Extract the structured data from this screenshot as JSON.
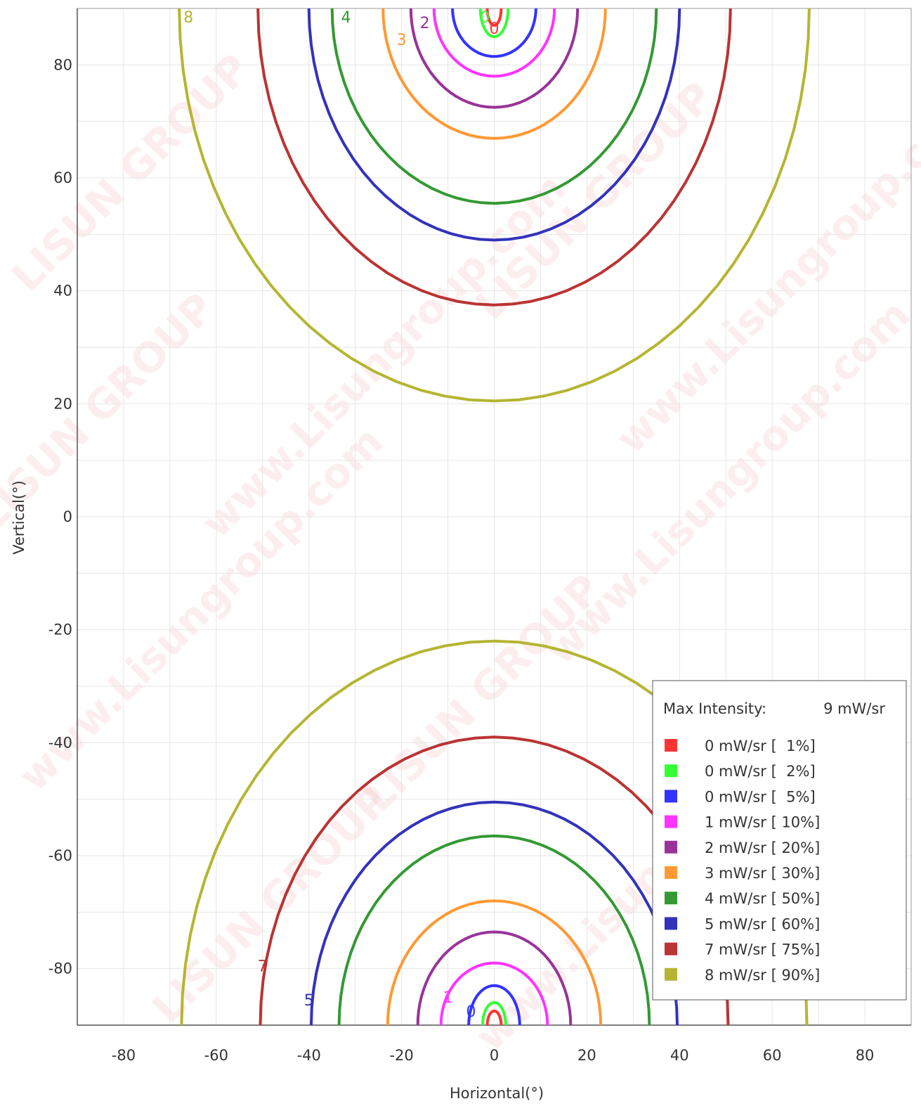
{
  "chart_data": {
    "type": "contour",
    "xlabel": "Horizontal(°)",
    "ylabel": "Vertical(°)",
    "xlim": [
      -90,
      90
    ],
    "ylim": [
      -90,
      90
    ],
    "xticks": [
      -80,
      -60,
      -40,
      -20,
      0,
      20,
      40,
      60,
      80
    ],
    "yticks": [
      80,
      60,
      40,
      20,
      0,
      -20,
      -40,
      -60,
      -80
    ],
    "grid": true,
    "legend": {
      "placement": "bottom-right",
      "header_label": "Max Intensity:",
      "header_value": "9 mW/sr",
      "entries": [
        {
          "label": "0 mW/sr [  1%]",
          "color": "#ff3333"
        },
        {
          "label": "0 mW/sr [  2%]",
          "color": "#33ff33"
        },
        {
          "label": "0 mW/sr [  5%]",
          "color": "#3333ff"
        },
        {
          "label": "1 mW/sr [ 10%]",
          "color": "#ff33ff"
        },
        {
          "label": "2 mW/sr [ 20%]",
          "color": "#993399"
        },
        {
          "label": "3 mW/sr [ 30%]",
          "color": "#ff9933"
        },
        {
          "label": "4 mW/sr [ 50%]",
          "color": "#339933"
        },
        {
          "label": "5 mW/sr [ 60%]",
          "color": "#3333bb"
        },
        {
          "label": "7 mW/sr [ 75%]",
          "color": "#bb3333"
        },
        {
          "label": "8 mW/sr [ 90%]",
          "color": "#b5b533"
        }
      ]
    },
    "contours": [
      {
        "color": "#ff3333",
        "top": {
          "a": 1.5,
          "v0": 87
        },
        "bottom": {
          "a": 1.5,
          "v0": -87.5
        }
      },
      {
        "color": "#33ff33",
        "top": {
          "a": 3,
          "v0": 85
        },
        "bottom": {
          "a": 2.5,
          "v0": -86
        }
      },
      {
        "color": "#3333ff",
        "top": {
          "a": 9,
          "v0": 81.5
        },
        "bottom": {
          "a": 5.5,
          "v0": -83
        }
      },
      {
        "color": "#ff33ff",
        "top": {
          "a": 13,
          "v0": 78
        },
        "bottom": {
          "a": 11.5,
          "v0": -79
        }
      },
      {
        "color": "#993399",
        "top": {
          "a": 18,
          "v0": 72.5
        },
        "bottom": {
          "a": 16.5,
          "v0": -73.5
        }
      },
      {
        "color": "#ff9933",
        "top": {
          "a": 24,
          "v0": 67
        },
        "bottom": {
          "a": 23,
          "v0": -68
        }
      },
      {
        "color": "#339933",
        "top": {
          "a": 35,
          "v0": 55.5
        },
        "bottom": {
          "a": 33.5,
          "v0": -56.5
        }
      },
      {
        "color": "#3333bb",
        "top": {
          "a": 40,
          "v0": 49
        },
        "bottom": {
          "a": 39.5,
          "v0": -50.5
        }
      },
      {
        "color": "#bb3333",
        "top": {
          "a": 51,
          "v0": 37.5
        },
        "bottom": {
          "a": 50.5,
          "v0": -39
        }
      },
      {
        "color": "#b5b533",
        "top": {
          "a": 68,
          "v0": 20.5
        },
        "bottom": {
          "a": 67.5,
          "v0": -22
        }
      }
    ],
    "contour_labels": [
      {
        "text": "8",
        "color": "#b5b533",
        "x": -66,
        "y": 88.5
      },
      {
        "text": "4",
        "color": "#339933",
        "x": -32,
        "y": 88.5
      },
      {
        "text": "2",
        "color": "#993399",
        "x": -15,
        "y": 87.5
      },
      {
        "text": "3",
        "color": "#ff9933",
        "x": -20,
        "y": 84.5
      },
      {
        "text": "0",
        "color": "#33ff33",
        "x": -2,
        "y": 88.5
      },
      {
        "text": "0",
        "color": "#ff3333",
        "x": 0,
        "y": 86.5
      },
      {
        "text": "7",
        "color": "#bb3333",
        "x": -50,
        "y": -79.5
      },
      {
        "text": "5",
        "color": "#3333bb",
        "x": -40,
        "y": -85.5
      },
      {
        "text": "1",
        "color": "#ff33ff",
        "x": -10,
        "y": -85
      },
      {
        "text": "0",
        "color": "#3333ff",
        "x": -5,
        "y": -87.5
      }
    ],
    "watermarks": [
      "LISUN GROUP",
      "www.Lisungroup.com"
    ]
  }
}
